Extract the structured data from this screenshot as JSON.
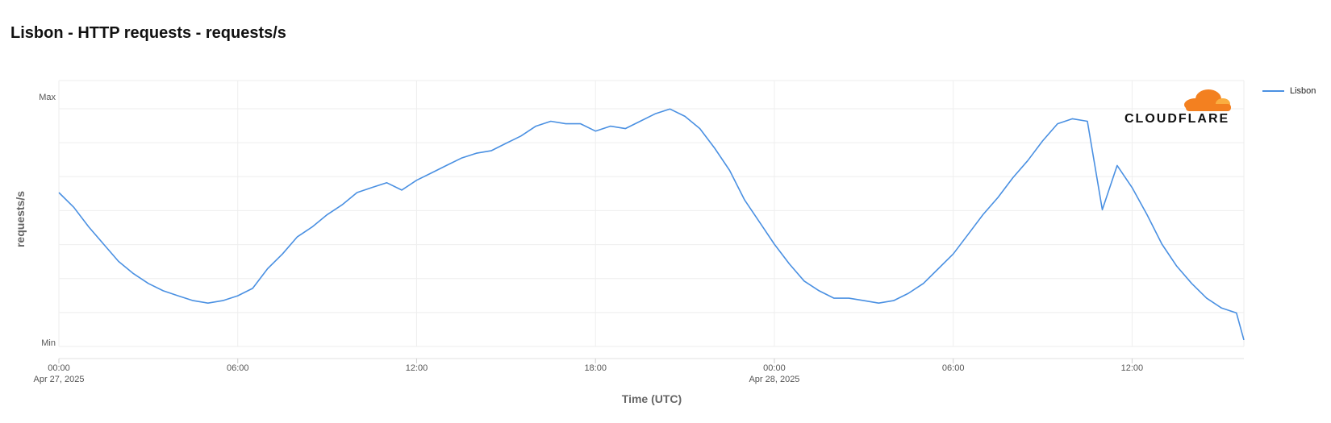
{
  "page": {
    "title": "Lisbon - HTTP requests - requests/s"
  },
  "logo": {
    "text": "CLOUDFLARE",
    "cloud_color_dark": "#f38020",
    "cloud_color_light": "#faae40"
  },
  "legend": [
    {
      "label": "Lisbon",
      "color": "#4a90e2"
    }
  ],
  "chart_data": {
    "type": "line",
    "title": "Lisbon - HTTP requests - requests/s",
    "xlabel": "Time (UTC)",
    "ylabel": "requests/s",
    "y_ticks": [
      "Max",
      "Min"
    ],
    "ylim": [
      0,
      1
    ],
    "xlim_hours": [
      0,
      39.75
    ],
    "x_ticks": [
      {
        "hour": 0,
        "label": "00:00",
        "sublabel": "Apr 27, 2025"
      },
      {
        "hour": 6,
        "label": "06:00",
        "sublabel": ""
      },
      {
        "hour": 12,
        "label": "12:00",
        "sublabel": ""
      },
      {
        "hour": 18,
        "label": "18:00",
        "sublabel": ""
      },
      {
        "hour": 24,
        "label": "00:00",
        "sublabel": "Apr 28, 2025"
      },
      {
        "hour": 30,
        "label": "06:00",
        "sublabel": ""
      },
      {
        "hour": 36,
        "label": "12:00",
        "sublabel": ""
      }
    ],
    "grid": true,
    "legend_position": "top-right",
    "series": [
      {
        "name": "Lisbon",
        "color": "#4a90e2",
        "x": [
          0,
          0.5,
          1,
          1.5,
          2,
          2.5,
          3,
          3.5,
          4,
          4.5,
          5,
          5.5,
          6,
          6.5,
          7,
          7.5,
          8,
          8.5,
          9,
          9.5,
          10,
          10.5,
          11,
          11.5,
          12,
          12.5,
          13,
          13.5,
          14,
          14.5,
          15,
          15.5,
          16,
          16.5,
          17,
          17.5,
          18,
          18.5,
          19,
          19.5,
          20,
          20.5,
          21,
          21.5,
          22,
          22.5,
          23,
          23.5,
          24,
          24.5,
          25,
          25.5,
          26,
          26.5,
          27,
          27.5,
          28,
          28.5,
          29,
          29.5,
          30,
          30.5,
          31,
          31.5,
          32,
          32.5,
          33,
          33.5,
          34,
          34.5,
          35,
          35.5,
          36,
          36.5,
          37,
          37.5,
          38,
          38.5,
          39,
          39.5,
          39.75
        ],
        "values": [
          0.61,
          0.55,
          0.47,
          0.4,
          0.33,
          0.28,
          0.24,
          0.21,
          0.19,
          0.17,
          0.16,
          0.17,
          0.19,
          0.22,
          0.3,
          0.36,
          0.43,
          0.47,
          0.52,
          0.56,
          0.61,
          0.63,
          0.65,
          0.62,
          0.66,
          0.69,
          0.72,
          0.75,
          0.77,
          0.78,
          0.81,
          0.84,
          0.88,
          0.9,
          0.89,
          0.89,
          0.86,
          0.88,
          0.87,
          0.9,
          0.93,
          0.95,
          0.92,
          0.87,
          0.79,
          0.7,
          0.58,
          0.49,
          0.4,
          0.32,
          0.25,
          0.21,
          0.18,
          0.18,
          0.17,
          0.16,
          0.17,
          0.2,
          0.24,
          0.3,
          0.36,
          0.44,
          0.52,
          0.59,
          0.67,
          0.74,
          0.82,
          0.89,
          0.91,
          0.9,
          0.54,
          0.72,
          0.63,
          0.52,
          0.4,
          0.31,
          0.24,
          0.18,
          0.14,
          0.12,
          0.01
        ]
      }
    ]
  }
}
